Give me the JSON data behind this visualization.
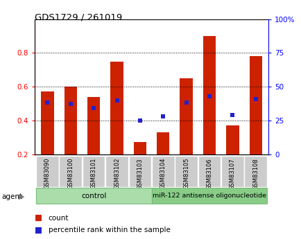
{
  "title": "GDS1729 / 261019",
  "samples": [
    "GSM83090",
    "GSM83100",
    "GSM83101",
    "GSM83102",
    "GSM83103",
    "GSM83104",
    "GSM83105",
    "GSM83106",
    "GSM83107",
    "GSM83108"
  ],
  "count_values": [
    0.57,
    0.6,
    0.54,
    0.75,
    0.27,
    0.33,
    0.65,
    0.9,
    0.37,
    0.78
  ],
  "percentile_values": [
    38,
    37,
    34,
    40,
    25,
    28,
    38,
    43,
    29,
    41
  ],
  "bar_bottom": 0.2,
  "ylim_left": [
    0.2,
    1.0
  ],
  "ylim_right": [
    0,
    75
  ],
  "yticks_left": [
    0.2,
    0.4,
    0.6,
    0.8
  ],
  "yticks_right": [
    0,
    25,
    50,
    75
  ],
  "yticklabels_left": [
    "0.2",
    "0.4",
    "0.6",
    "0.8"
  ],
  "yticklabels_right": [
    "0",
    "25",
    "50",
    "75",
    "100%"
  ],
  "yticks_right_full": [
    0,
    25,
    50,
    75,
    100
  ],
  "bar_color": "#CC2200",
  "percentile_color": "#2222CC",
  "bar_width": 0.55,
  "ctrl_color": "#AADDAA",
  "mir_color": "#88CC88",
  "agent_label": "agent",
  "legend_count_label": "count",
  "legend_percentile_label": "percentile rank within the sample"
}
